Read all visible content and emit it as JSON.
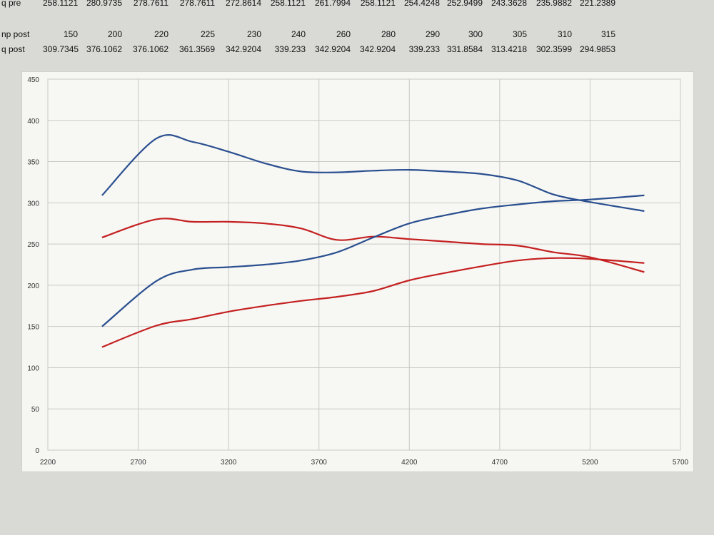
{
  "spreadsheet": {
    "rows": [
      {
        "label": "q pre",
        "values": [
          "258.1121",
          "280.9735",
          "278.7611",
          "278.7611",
          "272.8614",
          "258.1121",
          "261.7994",
          "258.1121",
          "254.4248",
          "252.9499",
          "243.3628",
          "235.9882",
          "221.2389"
        ]
      },
      {
        "label": "",
        "values": [
          "",
          "",
          "",
          "",
          "",
          "",
          "",
          "",
          "",
          "",
          "",
          "",
          ""
        ]
      },
      {
        "label": "np post",
        "values": [
          "150",
          "200",
          "220",
          "225",
          "230",
          "240",
          "260",
          "280",
          "290",
          "300",
          "305",
          "310",
          "315"
        ]
      },
      {
        "label": "q post",
        "values": [
          "309.7345",
          "376.1062",
          "376.1062",
          "361.3569",
          "342.9204",
          "339.233",
          "342.9204",
          "342.9204",
          "339.233",
          "331.8584",
          "313.4218",
          "302.3599",
          "294.9853"
        ]
      }
    ]
  },
  "chart_data": {
    "type": "line",
    "title": "",
    "xlabel": "",
    "ylabel": "",
    "xlim": [
      2200,
      5700
    ],
    "ylim": [
      0,
      450
    ],
    "x_ticks": [
      "2200",
      "2700",
      "3200",
      "3700",
      "4200",
      "4700",
      "5200",
      "5700"
    ],
    "y_ticks": [
      "0",
      "50",
      "100",
      "150",
      "200",
      "250",
      "300",
      "350",
      "400",
      "450"
    ],
    "grid": true,
    "legend_position": "right",
    "x": [
      2500,
      2800,
      3000,
      3200,
      3400,
      3600,
      3800,
      4000,
      4200,
      4400,
      4600,
      4800,
      5000,
      5200,
      5500
    ],
    "series": [
      {
        "color": "#2a4f8f",
        "values": [
          309,
          378,
          374,
          362,
          348,
          338,
          337,
          339,
          340,
          338,
          335,
          327,
          310,
          301,
          290
        ]
      },
      {
        "color": "#c42020",
        "values": [
          258,
          280,
          277,
          277,
          275,
          269,
          255,
          259,
          256,
          253,
          250,
          248,
          240,
          234,
          216
        ]
      },
      {
        "color": "#2a4f8f",
        "values": [
          150,
          205,
          219,
          222,
          225,
          230,
          240,
          258,
          275,
          285,
          293,
          298,
          302,
          304,
          309
        ]
      },
      {
        "color": "#c42020",
        "values": [
          125,
          151,
          159,
          168,
          175,
          181,
          186,
          193,
          206,
          215,
          223,
          230,
          233,
          232,
          227
        ]
      }
    ]
  }
}
